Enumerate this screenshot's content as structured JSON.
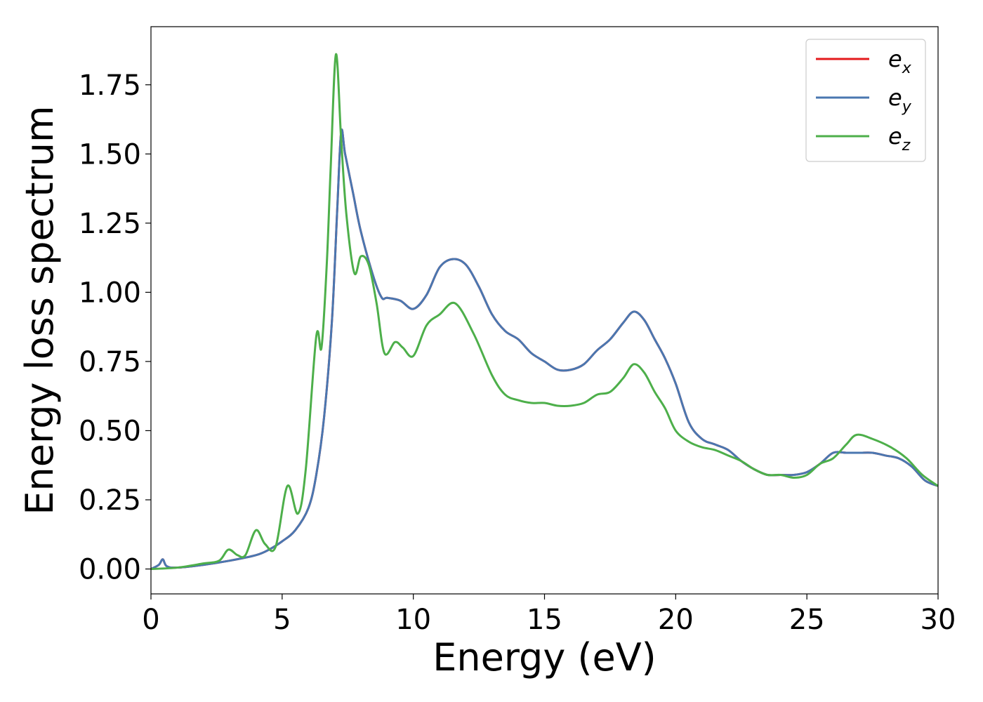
{
  "chart_data": {
    "type": "line",
    "title": "",
    "xlabel": "Energy (eV)",
    "ylabel": "Energy loss spectrum",
    "xlim": [
      0,
      30
    ],
    "ylim": [
      -0.09,
      1.96
    ],
    "xticks": [
      0,
      5,
      10,
      15,
      20,
      25,
      30
    ],
    "xtick_labels": [
      "0",
      "5",
      "10",
      "15",
      "20",
      "25",
      "30"
    ],
    "yticks": [
      0,
      0.25,
      0.5,
      0.75,
      1.0,
      1.25,
      1.5,
      1.75
    ],
    "ytick_labels": [
      "0.00",
      "0.25",
      "0.50",
      "0.75",
      "1.00",
      "1.25",
      "1.50",
      "1.75"
    ],
    "grid": false,
    "legend_position": "top-right",
    "series": [
      {
        "name": "x",
        "legend_base": "e",
        "legend_sub": "x",
        "color": "#e41a1c",
        "x": [
          0,
          0.3,
          0.45,
          0.6,
          1,
          2,
          3,
          4,
          4.5,
          5,
          5.5,
          6,
          6.3,
          6.6,
          6.9,
          7.1,
          7.25,
          7.4,
          7.7,
          8,
          8.5,
          8.8,
          9,
          9.5,
          10,
          10.5,
          11,
          11.5,
          12,
          12.5,
          13,
          13.5,
          14,
          14.5,
          15,
          15.5,
          16,
          16.5,
          17,
          17.5,
          18,
          18.4,
          18.8,
          19.2,
          19.6,
          20,
          20.5,
          21,
          21.5,
          22,
          22.5,
          23,
          23.5,
          24,
          24.5,
          25,
          25.5,
          26,
          26.5,
          27,
          27.5,
          28,
          28.5,
          29,
          29.5,
          30
        ],
        "y": [
          0,
          0.015,
          0.035,
          0.01,
          0.005,
          0.015,
          0.03,
          0.05,
          0.07,
          0.1,
          0.14,
          0.22,
          0.34,
          0.55,
          0.9,
          1.3,
          1.58,
          1.5,
          1.36,
          1.22,
          1.05,
          0.98,
          0.98,
          0.97,
          0.94,
          0.99,
          1.09,
          1.12,
          1.1,
          1.02,
          0.92,
          0.86,
          0.83,
          0.78,
          0.75,
          0.72,
          0.72,
          0.74,
          0.79,
          0.83,
          0.89,
          0.93,
          0.9,
          0.83,
          0.76,
          0.67,
          0.53,
          0.47,
          0.45,
          0.43,
          0.39,
          0.36,
          0.34,
          0.34,
          0.34,
          0.35,
          0.38,
          0.42,
          0.42,
          0.42,
          0.42,
          0.41,
          0.4,
          0.37,
          0.32,
          0.3
        ]
      },
      {
        "name": "y",
        "legend_base": "e",
        "legend_sub": "y",
        "color": "#4a77b0",
        "x": [
          0,
          0.3,
          0.45,
          0.6,
          1,
          2,
          3,
          4,
          4.5,
          5,
          5.5,
          6,
          6.3,
          6.6,
          6.9,
          7.1,
          7.25,
          7.4,
          7.7,
          8,
          8.5,
          8.8,
          9,
          9.5,
          10,
          10.5,
          11,
          11.5,
          12,
          12.5,
          13,
          13.5,
          14,
          14.5,
          15,
          15.5,
          16,
          16.5,
          17,
          17.5,
          18,
          18.4,
          18.8,
          19.2,
          19.6,
          20,
          20.5,
          21,
          21.5,
          22,
          22.5,
          23,
          23.5,
          24,
          24.5,
          25,
          25.5,
          26,
          26.5,
          27,
          27.5,
          28,
          28.5,
          29,
          29.5,
          30
        ],
        "y": [
          0,
          0.015,
          0.035,
          0.01,
          0.005,
          0.015,
          0.03,
          0.05,
          0.07,
          0.1,
          0.14,
          0.22,
          0.34,
          0.55,
          0.9,
          1.3,
          1.58,
          1.5,
          1.36,
          1.22,
          1.05,
          0.98,
          0.98,
          0.97,
          0.94,
          0.99,
          1.09,
          1.12,
          1.1,
          1.02,
          0.92,
          0.86,
          0.83,
          0.78,
          0.75,
          0.72,
          0.72,
          0.74,
          0.79,
          0.83,
          0.89,
          0.93,
          0.9,
          0.83,
          0.76,
          0.67,
          0.53,
          0.47,
          0.45,
          0.43,
          0.39,
          0.36,
          0.34,
          0.34,
          0.34,
          0.35,
          0.38,
          0.42,
          0.42,
          0.42,
          0.42,
          0.41,
          0.4,
          0.37,
          0.32,
          0.3
        ]
      },
      {
        "name": "z",
        "legend_base": "e",
        "legend_sub": "z",
        "color": "#4daf4a",
        "x": [
          0,
          1,
          2,
          2.6,
          2.95,
          3.3,
          3.6,
          4.0,
          4.35,
          4.75,
          5.2,
          5.6,
          5.9,
          6.3,
          6.5,
          6.7,
          6.85,
          7.05,
          7.25,
          7.45,
          7.75,
          8.0,
          8.3,
          8.6,
          8.9,
          9.3,
          9.6,
          10,
          10.5,
          11,
          11.6,
          12.3,
          13,
          13.5,
          14,
          14.5,
          15,
          15.5,
          16,
          16.5,
          17,
          17.5,
          18,
          18.4,
          18.8,
          19.2,
          19.6,
          20,
          20.5,
          21,
          21.5,
          22,
          22.5,
          23,
          23.5,
          24,
          24.5,
          25,
          25.5,
          26,
          26.5,
          26.9,
          27.5,
          28.2,
          28.8,
          29.4,
          30
        ],
        "y": [
          0,
          0.005,
          0.02,
          0.03,
          0.07,
          0.05,
          0.05,
          0.14,
          0.09,
          0.08,
          0.3,
          0.2,
          0.36,
          0.84,
          0.8,
          1.1,
          1.45,
          1.86,
          1.55,
          1.28,
          1.07,
          1.13,
          1.1,
          0.96,
          0.78,
          0.82,
          0.8,
          0.77,
          0.88,
          0.92,
          0.96,
          0.85,
          0.7,
          0.63,
          0.61,
          0.6,
          0.6,
          0.59,
          0.59,
          0.6,
          0.63,
          0.64,
          0.69,
          0.74,
          0.71,
          0.64,
          0.58,
          0.5,
          0.46,
          0.44,
          0.43,
          0.41,
          0.39,
          0.36,
          0.34,
          0.34,
          0.33,
          0.34,
          0.38,
          0.4,
          0.45,
          0.485,
          0.47,
          0.44,
          0.4,
          0.34,
          0.3
        ]
      }
    ]
  }
}
